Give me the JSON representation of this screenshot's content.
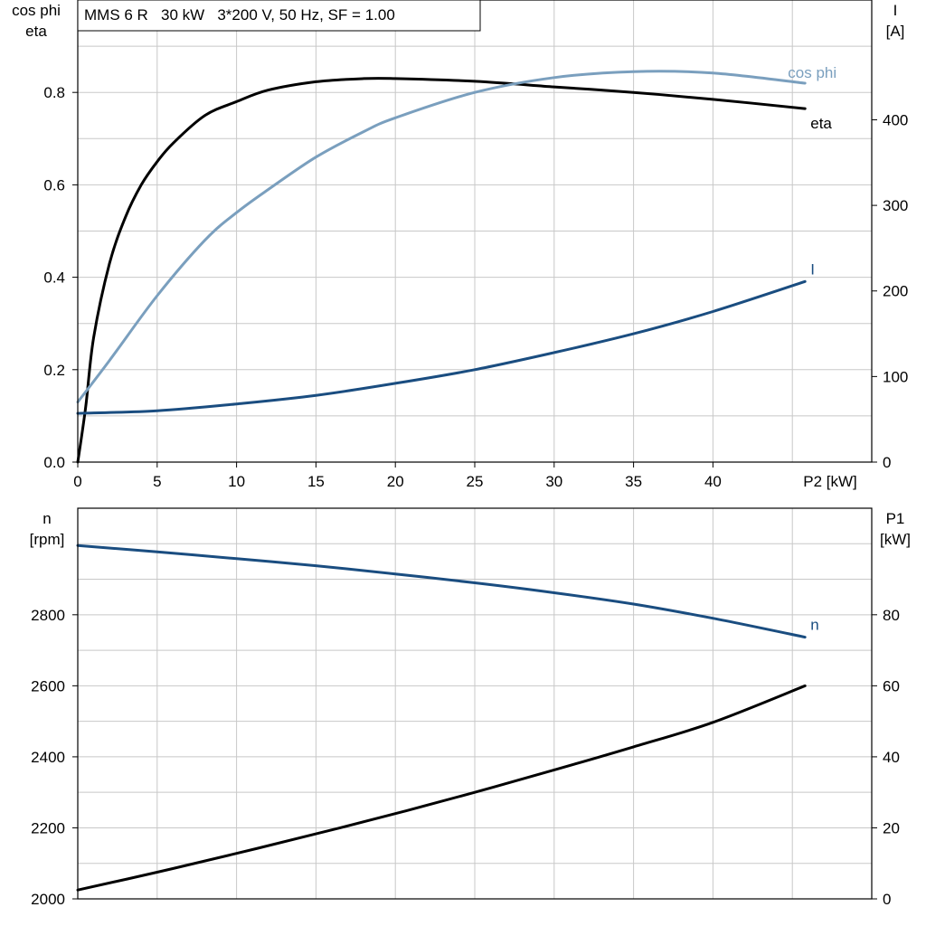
{
  "chart_data": [
    {
      "type": "line",
      "title": "MMS 6 R   30 kW   3*200 V, 50 Hz, SF = 1.00",
      "xlabel": "P2 [kW]",
      "xlim": [
        0,
        50
      ],
      "x_ticks": [
        "0",
        "5",
        "10",
        "15",
        "20",
        "25",
        "30",
        "35",
        "40"
      ],
      "ylabel_left": [
        "cos phi",
        "eta"
      ],
      "ylim_left": [
        0,
        1.0
      ],
      "y_ticks_left": [
        "0.0",
        "0.2",
        "0.4",
        "0.6",
        "0.8"
      ],
      "ylabel_right": [
        "I",
        "[A]"
      ],
      "ylim_right": [
        0,
        540
      ],
      "y_ticks_right": [
        "0",
        "100",
        "200",
        "300",
        "400"
      ],
      "grid": true,
      "series": [
        {
          "name": "eta",
          "axis": "left",
          "color": "#000000",
          "x": [
            0,
            0.5,
            1,
            2,
            3,
            4,
            5,
            6,
            8,
            10,
            12,
            15,
            18,
            20,
            25,
            30,
            35,
            40,
            45.8
          ],
          "values": [
            0.0,
            0.12,
            0.27,
            0.43,
            0.53,
            0.6,
            0.65,
            0.69,
            0.75,
            0.78,
            0.805,
            0.823,
            0.83,
            0.83,
            0.824,
            0.812,
            0.8,
            0.785,
            0.765
          ]
        },
        {
          "name": "cos phi",
          "axis": "left",
          "color": "#7a9fbe",
          "x": [
            0,
            2,
            5,
            8,
            10,
            12,
            15,
            18,
            20,
            25,
            30,
            35,
            40,
            45.8
          ],
          "values": [
            0.13,
            0.22,
            0.36,
            0.48,
            0.54,
            0.59,
            0.66,
            0.715,
            0.745,
            0.8,
            0.832,
            0.845,
            0.842,
            0.82
          ]
        },
        {
          "name": "I",
          "axis": "right",
          "color": "#1a4d80",
          "x": [
            0,
            5,
            10,
            15,
            20,
            25,
            30,
            35,
            40,
            45.8
          ],
          "values": [
            57,
            60,
            68,
            78,
            92,
            108,
            128,
            150,
            176,
            211
          ]
        }
      ]
    },
    {
      "type": "line",
      "xlabel": "",
      "xlim": [
        0,
        50
      ],
      "ylabel_left": [
        "n",
        "[rpm]"
      ],
      "ylim_left": [
        2000,
        3100
      ],
      "y_ticks_left": [
        "2000",
        "2200",
        "2400",
        "2600",
        "2800"
      ],
      "ylabel_right": [
        "P1",
        "[kW]"
      ],
      "ylim_right": [
        0,
        110
      ],
      "y_ticks_right": [
        "0",
        "20",
        "40",
        "60",
        "80"
      ],
      "grid": true,
      "series": [
        {
          "name": "n",
          "axis": "left",
          "color": "#1a4d80",
          "x": [
            0,
            5,
            10,
            15,
            20,
            25,
            30,
            35,
            40,
            45.8
          ],
          "values": [
            2995,
            2977,
            2958,
            2938,
            2915,
            2890,
            2862,
            2830,
            2790,
            2737
          ]
        },
        {
          "name": "",
          "axis": "right",
          "color": "#000000",
          "x": [
            0,
            5,
            10,
            15,
            20,
            25,
            30,
            35,
            40,
            45.8
          ],
          "values": [
            2.5,
            7.5,
            12.8,
            18.3,
            24.0,
            30.0,
            36.3,
            42.8,
            49.7,
            60.0
          ]
        }
      ]
    }
  ]
}
